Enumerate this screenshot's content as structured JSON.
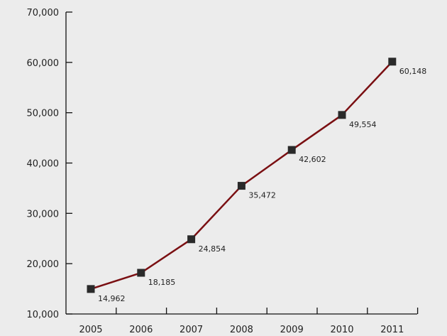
{
  "chart_data": {
    "type": "line",
    "categories": [
      "2005",
      "2006",
      "2007",
      "2008",
      "2009",
      "2010",
      "2011"
    ],
    "series": [
      {
        "values": [
          14962,
          18185,
          24854,
          35472,
          42602,
          49554,
          60148
        ],
        "data_labels": [
          "14,962",
          "18,185",
          "24,854",
          "35,472",
          "42,602",
          "49,554",
          "60,148"
        ]
      }
    ],
    "ylim": [
      10000,
      70000
    ],
    "yticks": [
      10000,
      20000,
      30000,
      40000,
      50000,
      60000,
      70000
    ],
    "ytick_labels": [
      "10,000",
      "20,000",
      "30,000",
      "40,000",
      "50,000",
      "60,000",
      "70,000"
    ],
    "title": "",
    "xlabel": "",
    "ylabel": "",
    "grid": false,
    "legend": "none",
    "line_color": "#7a0f12",
    "marker_color": "#2a2a2a",
    "background_color": "#ececec"
  }
}
